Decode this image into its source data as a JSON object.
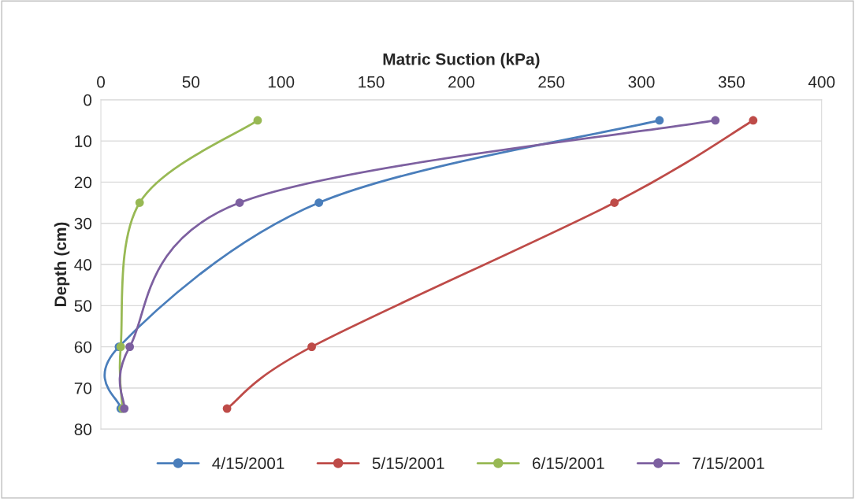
{
  "chart_data": {
    "type": "line",
    "xlabel": "Matric Suction (kPa)",
    "ylabel": "Depth (cm)",
    "xlim": [
      0,
      400
    ],
    "xticks": [
      0,
      50,
      100,
      150,
      200,
      250,
      300,
      350,
      400
    ],
    "ylim": [
      80,
      0
    ],
    "yticks": [
      0,
      10,
      20,
      30,
      40,
      50,
      60,
      70,
      80
    ],
    "grid": "y",
    "legend": "bottom",
    "marker": "circle",
    "line_style": "solid",
    "series": [
      {
        "name": "4/15/2001",
        "color": "#4a7ebb",
        "x": [
          310,
          121,
          10,
          11
        ],
        "values": [
          5,
          25,
          60,
          75
        ]
      },
      {
        "name": "5/15/2001",
        "color": "#be4b48",
        "x": [
          362,
          285,
          117,
          70
        ],
        "values": [
          5,
          25,
          60,
          75
        ]
      },
      {
        "name": "6/15/2001",
        "color": "#98b954",
        "x": [
          87,
          21.5,
          11,
          12
        ],
        "values": [
          5,
          25,
          60,
          75
        ]
      },
      {
        "name": "7/15/2001",
        "color": "#7d60a0",
        "x": [
          341,
          77,
          16,
          13
        ],
        "values": [
          5,
          25,
          60,
          75
        ]
      }
    ]
  }
}
